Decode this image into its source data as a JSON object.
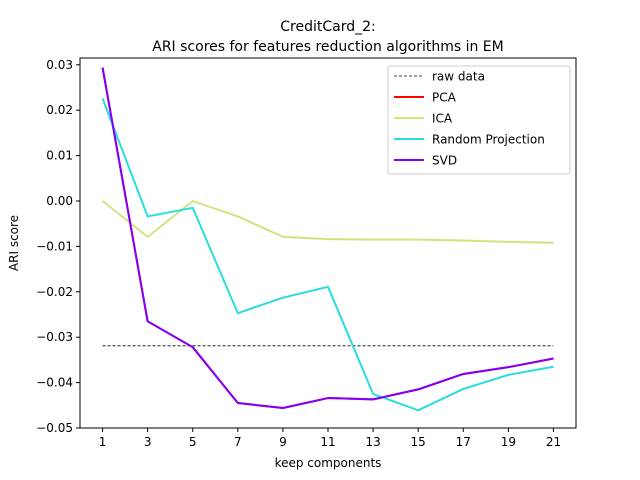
{
  "chart_data": {
    "type": "line",
    "title_line1": "CreditCard_2:",
    "title_line2": "ARI scores for features reduction algorithms in EM",
    "xlabel": "keep components",
    "ylabel": "ARI score",
    "x": [
      1,
      3,
      5,
      7,
      9,
      11,
      13,
      15,
      17,
      19,
      21
    ],
    "xticks": [
      "1",
      "3",
      "5",
      "7",
      "9",
      "11",
      "13",
      "15",
      "17",
      "19",
      "21"
    ],
    "yticks": [
      0.03,
      0.02,
      0.01,
      0.0,
      -0.01,
      -0.02,
      -0.03,
      -0.04,
      -0.05
    ],
    "ytick_labels": [
      "0.03",
      "0.02",
      "0.01",
      "0.00",
      "−0.01",
      "−0.02",
      "−0.03",
      "−0.04",
      "−0.05"
    ],
    "xlim": [
      0,
      22
    ],
    "ylim": [
      -0.05,
      0.0315
    ],
    "grid": false,
    "legend_position": "top-right",
    "raw_data": {
      "name": "raw data",
      "value": -0.0319,
      "color": "#000000",
      "style": "dashed"
    },
    "series": [
      {
        "name": "PCA",
        "color": "#ff0000",
        "values": [
          0.0294,
          -0.0265,
          -0.0322,
          -0.0445,
          -0.0456,
          -0.0434,
          -0.0437,
          -0.0415,
          -0.0381,
          -0.0366,
          -0.0347
        ]
      },
      {
        "name": "ICA",
        "color": "#d4e17f",
        "values": [
          0.0,
          -0.0079,
          0.0,
          -0.0034,
          -0.0079,
          -0.0084,
          -0.0085,
          -0.0085,
          -0.0087,
          -0.009,
          -0.0092
        ]
      },
      {
        "name": "Random Projection",
        "color": "#2adddd",
        "values": [
          0.0226,
          -0.0034,
          -0.0015,
          -0.0247,
          -0.0213,
          -0.0189,
          -0.0425,
          -0.0461,
          -0.0414,
          -0.0383,
          -0.0365
        ]
      },
      {
        "name": "SVD",
        "color": "#8000ff",
        "values": [
          0.0294,
          -0.0265,
          -0.0322,
          -0.0445,
          -0.0456,
          -0.0434,
          -0.0437,
          -0.0415,
          -0.0381,
          -0.0366,
          -0.0347
        ]
      }
    ]
  }
}
